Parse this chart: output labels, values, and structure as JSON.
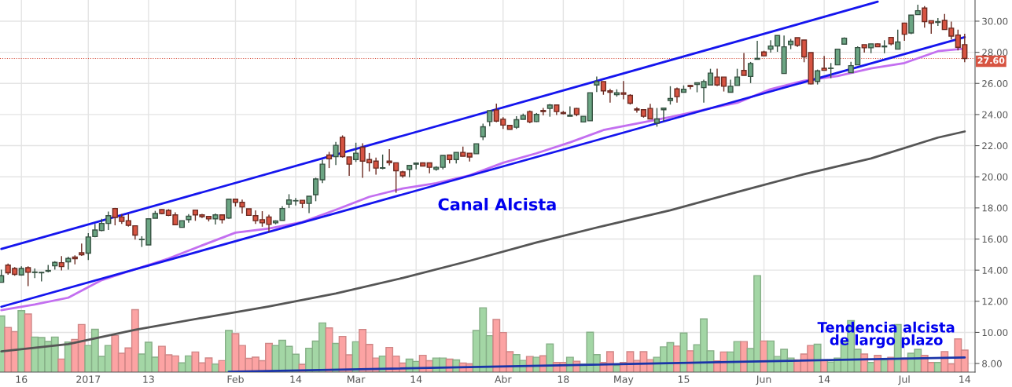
{
  "chart_data": {
    "type": "candlestick",
    "categories": [
      null,
      null,
      null,
      "16",
      null,
      null,
      null,
      null,
      null,
      null,
      null,
      null,
      null,
      "2017",
      null,
      null,
      null,
      null,
      null,
      null,
      null,
      null,
      "13",
      null,
      null,
      null,
      null,
      null,
      null,
      null,
      null,
      null,
      null,
      null,
      null,
      "Feb",
      null,
      null,
      null,
      null,
      null,
      null,
      null,
      null,
      "14",
      null,
      null,
      null,
      null,
      null,
      null,
      null,
      null,
      "Mar",
      null,
      null,
      null,
      null,
      null,
      null,
      null,
      null,
      "14",
      null,
      null,
      null,
      null,
      null,
      null,
      null,
      null,
      null,
      null,
      null,
      null,
      "Abr",
      null,
      null,
      null,
      null,
      null,
      null,
      null,
      null,
      "18",
      null,
      null,
      null,
      null,
      null,
      null,
      null,
      null,
      "May",
      null,
      null,
      null,
      null,
      null,
      null,
      null,
      null,
      "15",
      null,
      null,
      null,
      null,
      null,
      null,
      null,
      null,
      null,
      null,
      null,
      "Jun",
      null,
      null,
      null,
      null,
      null,
      null,
      null,
      null,
      "14",
      null,
      null,
      null,
      null,
      null,
      null,
      null,
      null,
      null,
      null,
      null,
      "Jul",
      null,
      null,
      null,
      null,
      null,
      null,
      null,
      null,
      "14"
    ],
    "ohlc": [
      [
        13.22,
        14.03,
        13.22,
        13.64
      ],
      [
        14.32,
        14.42,
        13.7,
        13.83
      ],
      [
        14.11,
        14.2,
        13.64,
        13.73
      ],
      [
        13.69,
        14.25,
        13.64,
        14.11
      ],
      [
        14.16,
        14.25,
        12.97,
        13.86
      ],
      [
        13.85,
        14.11,
        13.49,
        13.88
      ],
      [
        13.83,
        13.9,
        13.27,
        13.86
      ],
      [
        13.93,
        14.33,
        13.86,
        13.98
      ],
      [
        14.28,
        14.57,
        14.03,
        14.5
      ],
      [
        14.48,
        14.9,
        13.98,
        14.23
      ],
      [
        14.53,
        14.87,
        14.03,
        14.75
      ],
      [
        14.84,
        14.95,
        14.37,
        14.74
      ],
      [
        15.12,
        15.71,
        14.92,
        14.99
      ],
      [
        15.09,
        16.38,
        14.65,
        16.13
      ],
      [
        16.16,
        16.97,
        16.11,
        16.58
      ],
      [
        16.55,
        17.3,
        16.5,
        17.0
      ],
      [
        17.0,
        17.77,
        16.58,
        17.5
      ],
      [
        17.96,
        18.0,
        16.88,
        17.39
      ],
      [
        17.42,
        17.6,
        16.97,
        17.13
      ],
      [
        17.18,
        17.6,
        16.8,
        16.88
      ],
      [
        16.85,
        16.85,
        15.96,
        16.25
      ],
      [
        15.96,
        16.18,
        15.49,
        15.98
      ],
      [
        15.62,
        17.34,
        15.62,
        17.3
      ],
      [
        17.34,
        17.81,
        17.34,
        17.64
      ],
      [
        17.89,
        17.92,
        17.59,
        17.64
      ],
      [
        17.84,
        17.92,
        17.47,
        17.52
      ],
      [
        17.55,
        17.72,
        16.92,
        16.92
      ],
      [
        16.75,
        17.18,
        16.75,
        17.18
      ],
      [
        17.25,
        17.6,
        17.05,
        17.47
      ],
      [
        17.86,
        17.86,
        17.17,
        17.55
      ],
      [
        17.55,
        17.62,
        17.35,
        17.44
      ],
      [
        17.45,
        17.45,
        17.13,
        17.29
      ],
      [
        17.3,
        17.64,
        16.93,
        17.55
      ],
      [
        17.55,
        17.55,
        17.0,
        17.25
      ],
      [
        17.35,
        18.56,
        17.3,
        18.56
      ],
      [
        18.56,
        18.56,
        18.09,
        18.36
      ],
      [
        18.36,
        18.53,
        17.64,
        18.06
      ],
      [
        17.94,
        17.94,
        17.52,
        17.52
      ],
      [
        17.5,
        17.84,
        16.97,
        17.18
      ],
      [
        17.24,
        17.79,
        16.79,
        17.04
      ],
      [
        17.42,
        17.57,
        16.45,
        16.94
      ],
      [
        17.04,
        17.2,
        16.95,
        17.16
      ],
      [
        17.2,
        18.1,
        17.2,
        17.96
      ],
      [
        18.24,
        18.88,
        17.99,
        18.51
      ],
      [
        18.45,
        18.63,
        18.16,
        18.47
      ],
      [
        18.49,
        18.49,
        17.99,
        18.29
      ],
      [
        18.29,
        18.75,
        17.67,
        18.75
      ],
      [
        18.85,
        19.94,
        18.43,
        19.86
      ],
      [
        19.81,
        21.1,
        19.6,
        20.81
      ],
      [
        21.4,
        21.6,
        20.56,
        21.15
      ],
      [
        21.3,
        22.24,
        20.76,
        22.02
      ],
      [
        22.54,
        22.66,
        21.23,
        21.3
      ],
      [
        21.28,
        21.28,
        20.06,
        20.81
      ],
      [
        21.11,
        22.19,
        20.95,
        21.52
      ],
      [
        21.9,
        22.15,
        19.94,
        21.01
      ],
      [
        21.11,
        21.53,
        20.34,
        20.9
      ],
      [
        21.01,
        21.23,
        20.14,
        20.56
      ],
      [
        20.55,
        21.43,
        20.48,
        20.58
      ],
      [
        21.01,
        21.78,
        20.73,
        20.9
      ],
      [
        20.9,
        20.9,
        18.97,
        20.39
      ],
      [
        20.31,
        20.39,
        19.94,
        20.06
      ],
      [
        20.48,
        20.73,
        19.97,
        20.73
      ],
      [
        20.81,
        20.9,
        20.48,
        20.88
      ],
      [
        20.89,
        20.92,
        20.69,
        20.69
      ],
      [
        20.89,
        20.92,
        20.22,
        20.61
      ],
      [
        20.49,
        20.68,
        20.39,
        20.61
      ],
      [
        20.61,
        21.37,
        20.48,
        21.37
      ],
      [
        21.4,
        21.4,
        20.85,
        21.11
      ],
      [
        21.11,
        21.57,
        20.85,
        21.57
      ],
      [
        21.57,
        21.94,
        21.32,
        21.32
      ],
      [
        21.52,
        21.52,
        20.98,
        21.27
      ],
      [
        21.48,
        22.12,
        21.48,
        22.12
      ],
      [
        22.57,
        23.41,
        22.36,
        23.21
      ],
      [
        23.55,
        24.25,
        23.25,
        24.25
      ],
      [
        24.29,
        24.7,
        23.5,
        23.58
      ],
      [
        23.7,
        23.83,
        23.08,
        23.32
      ],
      [
        23.3,
        23.3,
        23.05,
        23.05
      ],
      [
        23.18,
        23.89,
        23.08,
        23.67
      ],
      [
        23.69,
        24.06,
        23.69,
        23.94
      ],
      [
        24.19,
        24.26,
        23.44,
        23.52
      ],
      [
        23.55,
        24.1,
        23.52,
        24.01
      ],
      [
        24.26,
        24.43,
        23.94,
        24.19
      ],
      [
        24.39,
        24.68,
        23.86,
        24.61
      ],
      [
        24.61,
        24.61,
        23.97,
        24.19
      ],
      [
        24.13,
        24.23,
        24.01,
        24.06
      ],
      [
        23.89,
        24.53,
        23.89,
        23.96
      ],
      [
        24.39,
        24.42,
        23.89,
        24.01
      ],
      [
        23.52,
        23.89,
        23.52,
        23.89
      ],
      [
        23.6,
        25.4,
        23.6,
        25.4
      ],
      [
        25.9,
        26.44,
        25.45,
        26.12
      ],
      [
        26.12,
        26.12,
        25.27,
        25.52
      ],
      [
        25.52,
        25.65,
        24.76,
        25.43
      ],
      [
        25.28,
        25.62,
        25.15,
        25.4
      ],
      [
        25.4,
        26.15,
        24.98,
        25.31
      ],
      [
        25.23,
        25.31,
        24.64,
        24.73
      ],
      [
        24.36,
        24.48,
        24.12,
        24.29
      ],
      [
        24.31,
        24.31,
        23.8,
        23.89
      ],
      [
        24.39,
        24.69,
        23.72,
        23.72
      ],
      [
        23.45,
        24.42,
        23.22,
        23.72
      ],
      [
        24.31,
        24.41,
        23.55,
        24.41
      ],
      [
        24.9,
        25.82,
        24.64,
        25.03
      ],
      [
        25.65,
        25.73,
        24.76,
        25.15
      ],
      [
        25.43,
        25.87,
        25.43,
        25.62
      ],
      [
        25.87,
        25.9,
        25.62,
        25.8
      ],
      [
        25.94,
        26.04,
        25.43,
        26.04
      ],
      [
        25.73,
        26.24,
        24.76,
        26.12
      ],
      [
        25.9,
        26.94,
        25.9,
        26.66
      ],
      [
        26.41,
        26.94,
        25.82,
        25.9
      ],
      [
        26.41,
        26.41,
        25.48,
        25.82
      ],
      [
        25.43,
        26.24,
        25.43,
        25.82
      ],
      [
        25.87,
        26.94,
        25.87,
        26.41
      ],
      [
        26.83,
        27.95,
        26.52,
        26.52
      ],
      [
        26.45,
        27.38,
        26.02,
        27.28
      ],
      [
        27.55,
        28.74,
        27.55,
        27.61
      ],
      [
        28.02,
        28.1,
        27.77,
        27.77
      ],
      [
        28.2,
        28.77,
        27.98,
        28.4
      ],
      [
        28.4,
        29.08,
        28.03,
        29.08
      ],
      [
        26.64,
        29.08,
        26.64,
        28.35
      ],
      [
        28.49,
        28.86,
        28.2,
        28.71
      ],
      [
        28.94,
        28.94,
        28.35,
        28.45
      ],
      [
        28.79,
        28.79,
        27.36,
        27.7
      ],
      [
        27.98,
        27.98,
        25.94,
        25.97
      ],
      [
        26.13,
        26.89,
        25.93,
        26.81
      ],
      [
        26.97,
        27.76,
        26.84,
        26.84
      ],
      [
        26.96,
        27.31,
        26.34,
        26.98
      ],
      [
        27.19,
        28.2,
        27.19,
        28.2
      ],
      [
        28.52,
        28.96,
        28.52,
        28.91
      ],
      [
        26.69,
        27.39,
        26.69,
        27.14
      ],
      [
        27.19,
        28.38,
        27.19,
        28.3
      ],
      [
        28.49,
        28.49,
        27.98,
        28.29
      ],
      [
        28.29,
        28.54,
        27.94,
        28.54
      ],
      [
        28.54,
        28.57,
        28.35,
        28.35
      ],
      [
        28.35,
        28.77,
        27.94,
        28.4
      ],
      [
        28.96,
        28.96,
        28.45,
        28.54
      ],
      [
        28.2,
        29.46,
        28.2,
        28.66
      ],
      [
        29.88,
        29.88,
        28.74,
        29.16
      ],
      [
        29.24,
        30.39,
        29.16,
        30.39
      ],
      [
        30.42,
        31.06,
        30.42,
        30.67
      ],
      [
        30.84,
        30.97,
        29.58,
        29.97
      ],
      [
        30.03,
        30.03,
        29.19,
        29.87
      ],
      [
        29.92,
        30.2,
        29.7,
        29.97
      ],
      [
        30.05,
        30.47,
        29.46,
        29.46
      ],
      [
        29.55,
        29.97,
        28.83,
        29.04
      ],
      [
        29.11,
        29.46,
        28.12,
        28.32
      ],
      [
        28.49,
        29.19,
        27.36,
        27.6
      ]
    ],
    "colors": [
      "#6ba583",
      "#d75442",
      "#d75442",
      "#6ba583",
      "#d75442",
      "#6ba583",
      "#6ba583",
      "#6ba583",
      "#6ba583",
      "#d75442",
      "#6ba583",
      "#d75442",
      "#d75442",
      "#6ba583",
      "#6ba583",
      "#6ba583",
      "#6ba583",
      "#d75442",
      "#d75442",
      "#d75442",
      "#d75442",
      "#6ba583",
      "#6ba583",
      "#6ba583",
      "#d75442",
      "#d75442",
      "#d75442",
      "#6ba583",
      "#6ba583",
      "#d75442",
      "#d75442",
      "#d75442",
      "#6ba583",
      "#d75442",
      "#6ba583",
      "#d75442",
      "#d75442",
      "#d75442",
      "#d75442",
      "#d75442",
      "#d75442",
      "#6ba583",
      "#6ba583",
      "#6ba583",
      "#6ba583",
      "#d75442",
      "#6ba583",
      "#6ba583",
      "#6ba583",
      "#d75442",
      "#6ba583",
      "#d75442",
      "#d75442",
      "#6ba583",
      "#d75442",
      "#d75442",
      "#d75442",
      "#6ba583",
      "#d75442",
      "#d75442",
      "#d75442",
      "#6ba583",
      "#6ba583",
      "#d75442",
      "#d75442",
      "#6ba583",
      "#6ba583",
      "#d75442",
      "#6ba583",
      "#d75442",
      "#d75442",
      "#6ba583",
      "#6ba583",
      "#6ba583",
      "#d75442",
      "#d75442",
      "#d75442",
      "#6ba583",
      "#6ba583",
      "#d75442",
      "#6ba583",
      "#d75442",
      "#6ba583",
      "#d75442",
      "#d75442",
      "#6ba583",
      "#d75442",
      "#6ba583",
      "#6ba583",
      "#6ba583",
      "#d75442",
      "#d75442",
      "#6ba583",
      "#d75442",
      "#d75442",
      "#d75442",
      "#d75442",
      "#d75442",
      "#6ba583",
      "#6ba583",
      "#6ba583",
      "#d75442",
      "#6ba583",
      "#d75442",
      "#6ba583",
      "#6ba583",
      "#6ba583",
      "#d75442",
      "#d75442",
      "#6ba583",
      "#6ba583",
      "#d75442",
      "#6ba583",
      "#6ba583",
      "#d75442",
      "#6ba583",
      "#6ba583",
      "#6ba583",
      "#6ba583",
      "#d75442",
      "#d75442",
      "#d75442",
      "#6ba583",
      "#d75442",
      "#6ba583",
      "#6ba583",
      "#6ba583",
      "#6ba583",
      "#6ba583",
      "#d75442",
      "#6ba583",
      "#d75442",
      "#6ba583",
      "#d75442",
      "#6ba583",
      "#d75442",
      "#6ba583",
      "#6ba583",
      "#d75442",
      "#d75442",
      "#6ba583",
      "#d75442",
      "#d75442",
      "#d75442",
      "#d75442"
    ],
    "series": [
      {
        "type": "bar",
        "values": [
          11.06,
          10.31,
          10.05,
          11.4,
          11.18,
          9.7,
          9.67,
          9.42,
          9.7,
          8.29,
          9.38,
          9.55,
          10.51,
          9.16,
          10.2,
          8.46,
          9.16,
          9.8,
          8.66,
          9.0,
          11.46,
          8.61,
          9.37,
          8.41,
          9.11,
          8.56,
          8.49,
          8.04,
          8.49,
          8.74,
          8.04,
          8.36,
          7.96,
          8.19,
          10.12,
          9.92,
          9.16,
          8.33,
          8.41,
          8.18,
          9.29,
          9.15,
          9.49,
          9.1,
          8.6,
          7.94,
          8.98,
          9.44,
          10.61,
          10.29,
          9.29,
          9.74,
          8.56,
          9.4,
          10.19,
          9.23,
          8.35,
          8.48,
          9.03,
          8.48,
          8.03,
          8.28,
          8.14,
          8.53,
          8.18,
          8.35,
          8.35,
          8.28,
          8.23,
          8.03,
          7.98,
          10.12,
          11.58,
          9.79,
          10.83,
          9.99,
          8.76,
          8.57,
          8.2,
          8.45,
          8.4,
          8.5,
          9.26,
          8.07,
          8.07,
          8.4,
          8.15,
          7.95,
          10.01,
          8.57,
          8.07,
          8.76,
          7.87,
          8.07,
          8.76,
          8.2,
          8.76,
          8.25,
          8.4,
          9.07,
          9.34,
          9.12,
          9.96,
          8.82,
          9.21,
          10.87,
          8.82,
          8.17,
          8.74,
          8.74,
          9.41,
          9.41,
          8.96,
          13.65,
          9.45,
          9.45,
          8.45,
          8.91,
          8.35,
          8.24,
          8.61,
          9.16,
          9.24,
          8.24,
          8.1,
          8.35,
          9.46,
          10.76,
          8.91,
          8.61,
          8.07,
          8.52,
          8.24,
          8.4,
          10.5,
          8.35,
          8.66,
          8.91,
          8.52,
          8.07,
          8.07,
          8.77,
          7.98,
          9.58,
          8.86
        ],
        "colors": [
          "#a3d6a5",
          "#fca3a3",
          "#fca3a3",
          "#a3d6a5",
          "#fca3a3",
          "#a3d6a5",
          "#a3d6a5",
          "#a3d6a5",
          "#a3d6a5",
          "#fca3a3",
          "#a3d6a5",
          "#fca3a3",
          "#fca3a3",
          "#a3d6a5",
          "#a3d6a5",
          "#a3d6a5",
          "#a3d6a5",
          "#fca3a3",
          "#fca3a3",
          "#fca3a3",
          "#fca3a3",
          "#a3d6a5",
          "#a3d6a5",
          "#a3d6a5",
          "#fca3a3",
          "#fca3a3",
          "#fca3a3",
          "#a3d6a5",
          "#a3d6a5",
          "#fca3a3",
          "#fca3a3",
          "#fca3a3",
          "#a3d6a5",
          "#fca3a3",
          "#a3d6a5",
          "#fca3a3",
          "#fca3a3",
          "#fca3a3",
          "#fca3a3",
          "#fca3a3",
          "#fca3a3",
          "#a3d6a5",
          "#a3d6a5",
          "#a3d6a5",
          "#a3d6a5",
          "#fca3a3",
          "#a3d6a5",
          "#a3d6a5",
          "#a3d6a5",
          "#fca3a3",
          "#a3d6a5",
          "#fca3a3",
          "#fca3a3",
          "#a3d6a5",
          "#fca3a3",
          "#fca3a3",
          "#fca3a3",
          "#a3d6a5",
          "#fca3a3",
          "#fca3a3",
          "#fca3a3",
          "#a3d6a5",
          "#a3d6a5",
          "#fca3a3",
          "#fca3a3",
          "#a3d6a5",
          "#a3d6a5",
          "#fca3a3",
          "#a3d6a5",
          "#fca3a3",
          "#fca3a3",
          "#a3d6a5",
          "#a3d6a5",
          "#a3d6a5",
          "#fca3a3",
          "#fca3a3",
          "#fca3a3",
          "#a3d6a5",
          "#a3d6a5",
          "#fca3a3",
          "#a3d6a5",
          "#fca3a3",
          "#a3d6a5",
          "#fca3a3",
          "#fca3a3",
          "#a3d6a5",
          "#fca3a3",
          "#a3d6a5",
          "#a3d6a5",
          "#a3d6a5",
          "#fca3a3",
          "#fca3a3",
          "#a3d6a5",
          "#fca3a3",
          "#fca3a3",
          "#fca3a3",
          "#fca3a3",
          "#fca3a3",
          "#a3d6a5",
          "#a3d6a5",
          "#a3d6a5",
          "#fca3a3",
          "#a3d6a5",
          "#fca3a3",
          "#a3d6a5",
          "#a3d6a5",
          "#a3d6a5",
          "#fca3a3",
          "#fca3a3",
          "#a3d6a5",
          "#a3d6a5",
          "#fca3a3",
          "#a3d6a5",
          "#a3d6a5",
          "#fca3a3",
          "#a3d6a5",
          "#a3d6a5",
          "#a3d6a5",
          "#a3d6a5",
          "#fca3a3",
          "#fca3a3",
          "#fca3a3",
          "#a3d6a5",
          "#fca3a3",
          "#a3d6a5",
          "#a3d6a5",
          "#a3d6a5",
          "#a3d6a5",
          "#a3d6a5",
          "#fca3a3",
          "#a3d6a5",
          "#fca3a3",
          "#a3d6a5",
          "#fca3a3",
          "#a3d6a5",
          "#fca3a3",
          "#a3d6a5",
          "#a3d6a5",
          "#fca3a3",
          "#fca3a3",
          "#a3d6a5",
          "#fca3a3",
          "#fca3a3",
          "#fca3a3",
          "#fca3a3"
        ]
      },
      {
        "type": "line",
        "color": "#c36ff0",
        "values": [
          11.43,
          null,
          null,
          null,
          null,
          11.8,
          null,
          null,
          null,
          null,
          12.23,
          null,
          null,
          null,
          null,
          13.36,
          null,
          null,
          null,
          null,
          14.06,
          null,
          null,
          null,
          null,
          14.75,
          null,
          null,
          null,
          null,
          15.59,
          null,
          null,
          null,
          null,
          16.41,
          null,
          null,
          null,
          null,
          16.67,
          null,
          null,
          null,
          null,
          17.09,
          null,
          null,
          null,
          null,
          17.88,
          null,
          null,
          null,
          null,
          18.71,
          null,
          null,
          null,
          null,
          19.25,
          null,
          null,
          null,
          null,
          19.59,
          null,
          null,
          null,
          null,
          20.09,
          null,
          null,
          null,
          null,
          20.9,
          null,
          null,
          null,
          null,
          21.51,
          null,
          null,
          null,
          null,
          22.21,
          null,
          null,
          null,
          null,
          23.0,
          null,
          null,
          null,
          null,
          23.42,
          null,
          null,
          null,
          null,
          23.84,
          null,
          null,
          null,
          null,
          24.31,
          null,
          null,
          null,
          null,
          24.76,
          null,
          null,
          null,
          null,
          25.63,
          null,
          null,
          null,
          null,
          26.17,
          null,
          null,
          null,
          null,
          26.47,
          null,
          null,
          null,
          null,
          26.97,
          null,
          null,
          null,
          null,
          27.31,
          null,
          null,
          null,
          null,
          28.07,
          null,
          null,
          null,
          28.24
        ]
      },
      {
        "type": "line",
        "color": "#555555",
        "values": [
          8.78,
          null,
          null,
          null,
          null,
          null,
          null,
          null,
          null,
          null,
          9.25,
          null,
          null,
          null,
          null,
          null,
          null,
          null,
          null,
          null,
          10.17,
          null,
          null,
          null,
          null,
          null,
          null,
          null,
          null,
          null,
          10.93,
          null,
          null,
          null,
          null,
          null,
          null,
          null,
          null,
          null,
          11.67,
          null,
          null,
          null,
          null,
          null,
          null,
          null,
          null,
          null,
          12.5,
          null,
          null,
          null,
          null,
          null,
          null,
          null,
          null,
          null,
          13.5,
          null,
          null,
          null,
          null,
          null,
          null,
          null,
          null,
          null,
          14.6,
          null,
          null,
          null,
          null,
          null,
          null,
          null,
          null,
          null,
          15.78,
          null,
          null,
          null,
          null,
          null,
          null,
          null,
          null,
          null,
          16.84,
          null,
          null,
          null,
          null,
          null,
          null,
          null,
          null,
          null,
          17.85,
          null,
          null,
          null,
          null,
          null,
          null,
          null,
          null,
          null,
          19.02,
          null,
          null,
          null,
          null,
          null,
          null,
          null,
          null,
          null,
          20.17,
          null,
          null,
          null,
          null,
          null,
          null,
          null,
          null,
          null,
          21.18,
          null,
          null,
          null,
          null,
          null,
          null,
          null,
          null,
          null,
          22.52,
          null,
          null,
          null,
          22.91
        ]
      },
      {
        "type": "line",
        "color": "#1515ee",
        "values": [
          15.36,
          null,
          null,
          null,
          null,
          null,
          null,
          null,
          null,
          null,
          null,
          null,
          null,
          null,
          null,
          null,
          null,
          null,
          null,
          null,
          null,
          null,
          null,
          null,
          null,
          null,
          null,
          null,
          null,
          null,
          null,
          null,
          null,
          null,
          null,
          null,
          null,
          null,
          null,
          null,
          null,
          null,
          null,
          null,
          null,
          null,
          null,
          null,
          null,
          null,
          null,
          null,
          null,
          null,
          null,
          null,
          null,
          null,
          null,
          null,
          null,
          null,
          null,
          null,
          null,
          null,
          null,
          null,
          null,
          null,
          null,
          null,
          null,
          null,
          null,
          null,
          null,
          null,
          null,
          null,
          null,
          null,
          null,
          null,
          null,
          null,
          null,
          null,
          null,
          null,
          null,
          null,
          null,
          null,
          null,
          null,
          null,
          null,
          null,
          null,
          null,
          null,
          null,
          null,
          null,
          null,
          null,
          null,
          null,
          null,
          null,
          null,
          null,
          null,
          null,
          null,
          null,
          null,
          null,
          null,
          null,
          null,
          null,
          null,
          null,
          null,
          null,
          null,
          null,
          null,
          null,
          31.25,
          null,
          null,
          null,
          null,
          null,
          null,
          null,
          null,
          null,
          null,
          null,
          null,
          null
        ]
      },
      {
        "type": "line",
        "color": "#1515ee",
        "values": [
          11.65,
          null,
          null,
          null,
          null,
          null,
          null,
          null,
          null,
          null,
          null,
          null,
          null,
          null,
          null,
          null,
          null,
          null,
          null,
          null,
          null,
          null,
          null,
          null,
          null,
          null,
          null,
          null,
          null,
          null,
          null,
          null,
          null,
          null,
          null,
          null,
          null,
          null,
          null,
          null,
          null,
          null,
          null,
          null,
          null,
          null,
          null,
          null,
          null,
          null,
          null,
          null,
          null,
          null,
          null,
          null,
          null,
          null,
          null,
          null,
          null,
          null,
          null,
          null,
          null,
          null,
          null,
          null,
          null,
          null,
          null,
          null,
          null,
          null,
          null,
          null,
          null,
          null,
          null,
          null,
          null,
          null,
          null,
          null,
          null,
          null,
          null,
          null,
          null,
          null,
          null,
          null,
          null,
          null,
          null,
          null,
          null,
          null,
          null,
          null,
          null,
          null,
          null,
          null,
          null,
          null,
          null,
          null,
          null,
          null,
          null,
          null,
          null,
          null,
          null,
          null,
          null,
          null,
          null,
          null,
          null,
          null,
          null,
          null,
          null,
          null,
          null,
          null,
          null,
          null,
          null,
          null,
          null,
          null,
          null,
          null,
          null,
          null,
          null,
          null,
          null,
          null,
          null,
          null,
          28.97
        ]
      },
      {
        "type": "line",
        "color": "#1a34a8",
        "values": [
          null,
          null,
          null,
          null,
          null,
          null,
          null,
          null,
          null,
          null,
          null,
          null,
          null,
          null,
          null,
          null,
          null,
          null,
          null,
          null,
          null,
          null,
          null,
          null,
          null,
          null,
          null,
          null,
          null,
          null,
          null,
          null,
          null,
          null,
          7.47,
          null,
          null,
          null,
          null,
          null,
          null,
          null,
          null,
          null,
          null,
          null,
          null,
          null,
          null,
          null,
          null,
          null,
          null,
          null,
          null,
          null,
          null,
          null,
          null,
          null,
          null,
          null,
          null,
          null,
          null,
          null,
          null,
          null,
          null,
          null,
          null,
          null,
          null,
          null,
          null,
          null,
          null,
          null,
          null,
          null,
          null,
          null,
          null,
          null,
          null,
          null,
          null,
          null,
          null,
          null,
          null,
          null,
          null,
          null,
          null,
          null,
          null,
          null,
          null,
          null,
          null,
          null,
          null,
          null,
          null,
          null,
          null,
          null,
          null,
          null,
          null,
          null,
          null,
          null,
          null,
          null,
          null,
          null,
          null,
          null,
          null,
          null,
          null,
          null,
          null,
          null,
          null,
          null,
          null,
          null,
          null,
          null,
          null,
          null,
          null,
          null,
          null,
          null,
          null,
          null,
          null,
          null,
          null,
          null,
          8.39
        ]
      }
    ],
    "ylim": [
      7.45,
      31.36
    ],
    "yticks": [
      {
        "value": 8,
        "label": "8.00"
      },
      {
        "value": 10,
        "label": "10.00"
      },
      {
        "value": 12,
        "label": "12.00"
      },
      {
        "value": 14,
        "label": "14.00"
      },
      {
        "value": 16,
        "label": "16.00"
      },
      {
        "value": 18,
        "label": "18.00"
      },
      {
        "value": 20,
        "label": "20.00"
      },
      {
        "value": 22,
        "label": "22.00"
      },
      {
        "value": 24,
        "label": "24.00"
      },
      {
        "value": 26,
        "label": "26.00"
      },
      {
        "value": 28,
        "label": "28.00"
      },
      {
        "value": 30,
        "label": "30.00"
      }
    ],
    "grid": true,
    "ref_lines": [
      {
        "axis": "y",
        "value": 27.6,
        "label": "27.60",
        "color": "#d75442"
      }
    ],
    "annotations": [
      "Canal Alcista",
      "Tendencia alcista\nde largo plazo"
    ]
  }
}
